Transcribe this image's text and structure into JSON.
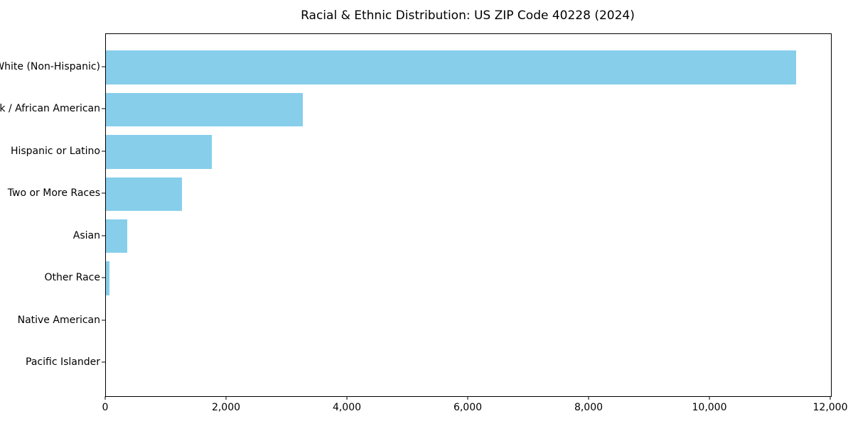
{
  "chart_data": {
    "type": "bar",
    "orientation": "horizontal",
    "title": "Racial & Ethnic Distribution: US ZIP Code 40228 (2024)",
    "categories": [
      "White (Non-Hispanic)",
      "Black / African American",
      "Hispanic or Latino",
      "Two or More Races",
      "Asian",
      "Other Race",
      "Native American",
      "Pacific Islander"
    ],
    "values": [
      11420,
      3260,
      1750,
      1260,
      350,
      60,
      0,
      0
    ],
    "xlabel": "",
    "ylabel": "",
    "xlim": [
      0,
      12000
    ],
    "xticks": [
      0,
      2000,
      4000,
      6000,
      8000,
      10000,
      12000
    ],
    "xtick_labels": [
      "0",
      "2,000",
      "4,000",
      "6,000",
      "8,000",
      "10,000",
      "12,000"
    ],
    "bar_color": "#87CEEB",
    "text_color": "#000000",
    "spine_color": "#000000",
    "grid": false,
    "legend": null
  }
}
